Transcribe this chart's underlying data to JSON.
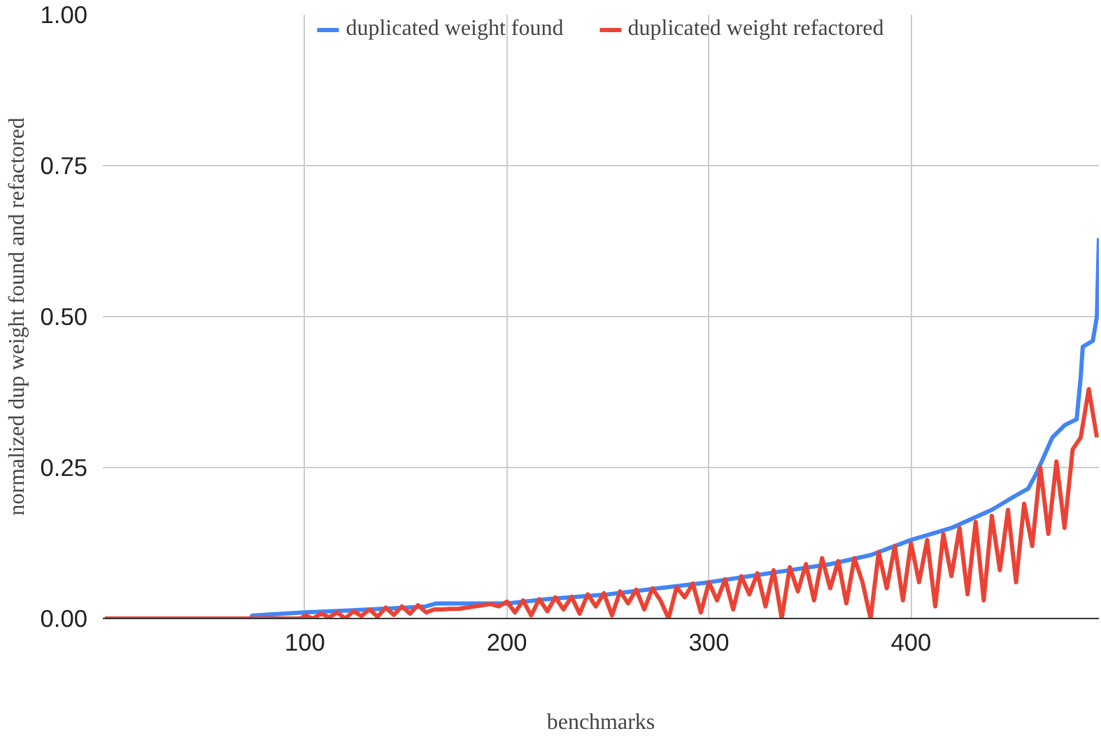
{
  "chart_data": {
    "type": "line",
    "xlabel": "benchmarks",
    "ylabel": "normalized dup weight found and refactored",
    "xlim": [
      0,
      493
    ],
    "xticks": [
      100,
      200,
      300,
      400
    ],
    "ylim": [
      0,
      1
    ],
    "yticks": [
      {
        "value": 0,
        "label": "0.00"
      },
      {
        "value": 0.25,
        "label": "0.25"
      },
      {
        "value": 0.5,
        "label": "0.50"
      },
      {
        "value": 0.75,
        "label": "0.75"
      },
      {
        "value": 1,
        "label": "1.00"
      }
    ],
    "grid": true,
    "legend": "top",
    "marker": "none",
    "line_style": "solid",
    "series": [
      {
        "name": "duplicated weight found",
        "color": "#4285f4",
        "x": [
          1,
          73,
          74,
          100,
          120,
          150,
          160,
          165,
          200,
          220,
          250,
          275,
          300,
          320,
          340,
          360,
          380,
          400,
          420,
          430,
          440,
          450,
          458,
          462,
          466,
          470,
          476,
          482,
          484,
          485,
          490,
          492,
          493
        ],
        "values": [
          0,
          0,
          0.005,
          0.01,
          0.013,
          0.018,
          0.02,
          0.025,
          0.025,
          0.032,
          0.04,
          0.05,
          0.06,
          0.07,
          0.08,
          0.09,
          0.105,
          0.13,
          0.15,
          0.165,
          0.18,
          0.2,
          0.215,
          0.24,
          0.27,
          0.3,
          0.32,
          0.33,
          0.4,
          0.45,
          0.46,
          0.5,
          0.63
        ]
      },
      {
        "name": "duplicated weight refactored",
        "color": "#ea4335",
        "x": [
          1,
          98,
          100,
          104,
          108,
          112,
          116,
          120,
          124,
          128,
          132,
          136,
          140,
          144,
          148,
          152,
          156,
          160,
          164,
          168,
          172,
          176,
          180,
          184,
          188,
          192,
          196,
          200,
          204,
          208,
          212,
          216,
          220,
          224,
          228,
          232,
          236,
          240,
          244,
          248,
          252,
          256,
          260,
          264,
          268,
          272,
          276,
          280,
          284,
          288,
          292,
          296,
          300,
          304,
          308,
          312,
          316,
          320,
          324,
          328,
          332,
          336,
          340,
          344,
          348,
          352,
          356,
          360,
          364,
          368,
          372,
          376,
          380,
          384,
          388,
          392,
          396,
          400,
          404,
          408,
          412,
          416,
          420,
          424,
          428,
          432,
          436,
          440,
          444,
          448,
          452,
          456,
          460,
          464,
          468,
          472,
          476,
          480,
          484,
          488,
          492
        ],
        "values": [
          0,
          0,
          0.005,
          0.0,
          0.008,
          0.002,
          0.01,
          0.0,
          0.012,
          0.004,
          0.015,
          0.003,
          0.018,
          0.006,
          0.02,
          0.008,
          0.022,
          0.01,
          0.015,
          0.015,
          0.016,
          0.016,
          0.018,
          0.02,
          0.022,
          0.024,
          0.02,
          0.028,
          0.01,
          0.03,
          0.005,
          0.032,
          0.012,
          0.035,
          0.015,
          0.036,
          0.008,
          0.04,
          0.02,
          0.042,
          0.005,
          0.045,
          0.025,
          0.048,
          0.015,
          0.05,
          0.03,
          0.0,
          0.052,
          0.035,
          0.058,
          0.01,
          0.06,
          0.03,
          0.065,
          0.015,
          0.07,
          0.04,
          0.075,
          0.02,
          0.08,
          0.0,
          0.085,
          0.045,
          0.09,
          0.03,
          0.1,
          0.05,
          0.095,
          0.025,
          0.1,
          0.06,
          0.0,
          0.11,
          0.05,
          0.12,
          0.03,
          0.125,
          0.06,
          0.13,
          0.02,
          0.14,
          0.07,
          0.15,
          0.04,
          0.16,
          0.03,
          0.17,
          0.08,
          0.18,
          0.06,
          0.19,
          0.12,
          0.25,
          0.14,
          0.26,
          0.15,
          0.28,
          0.3,
          0.38,
          0.3
        ]
      }
    ]
  }
}
